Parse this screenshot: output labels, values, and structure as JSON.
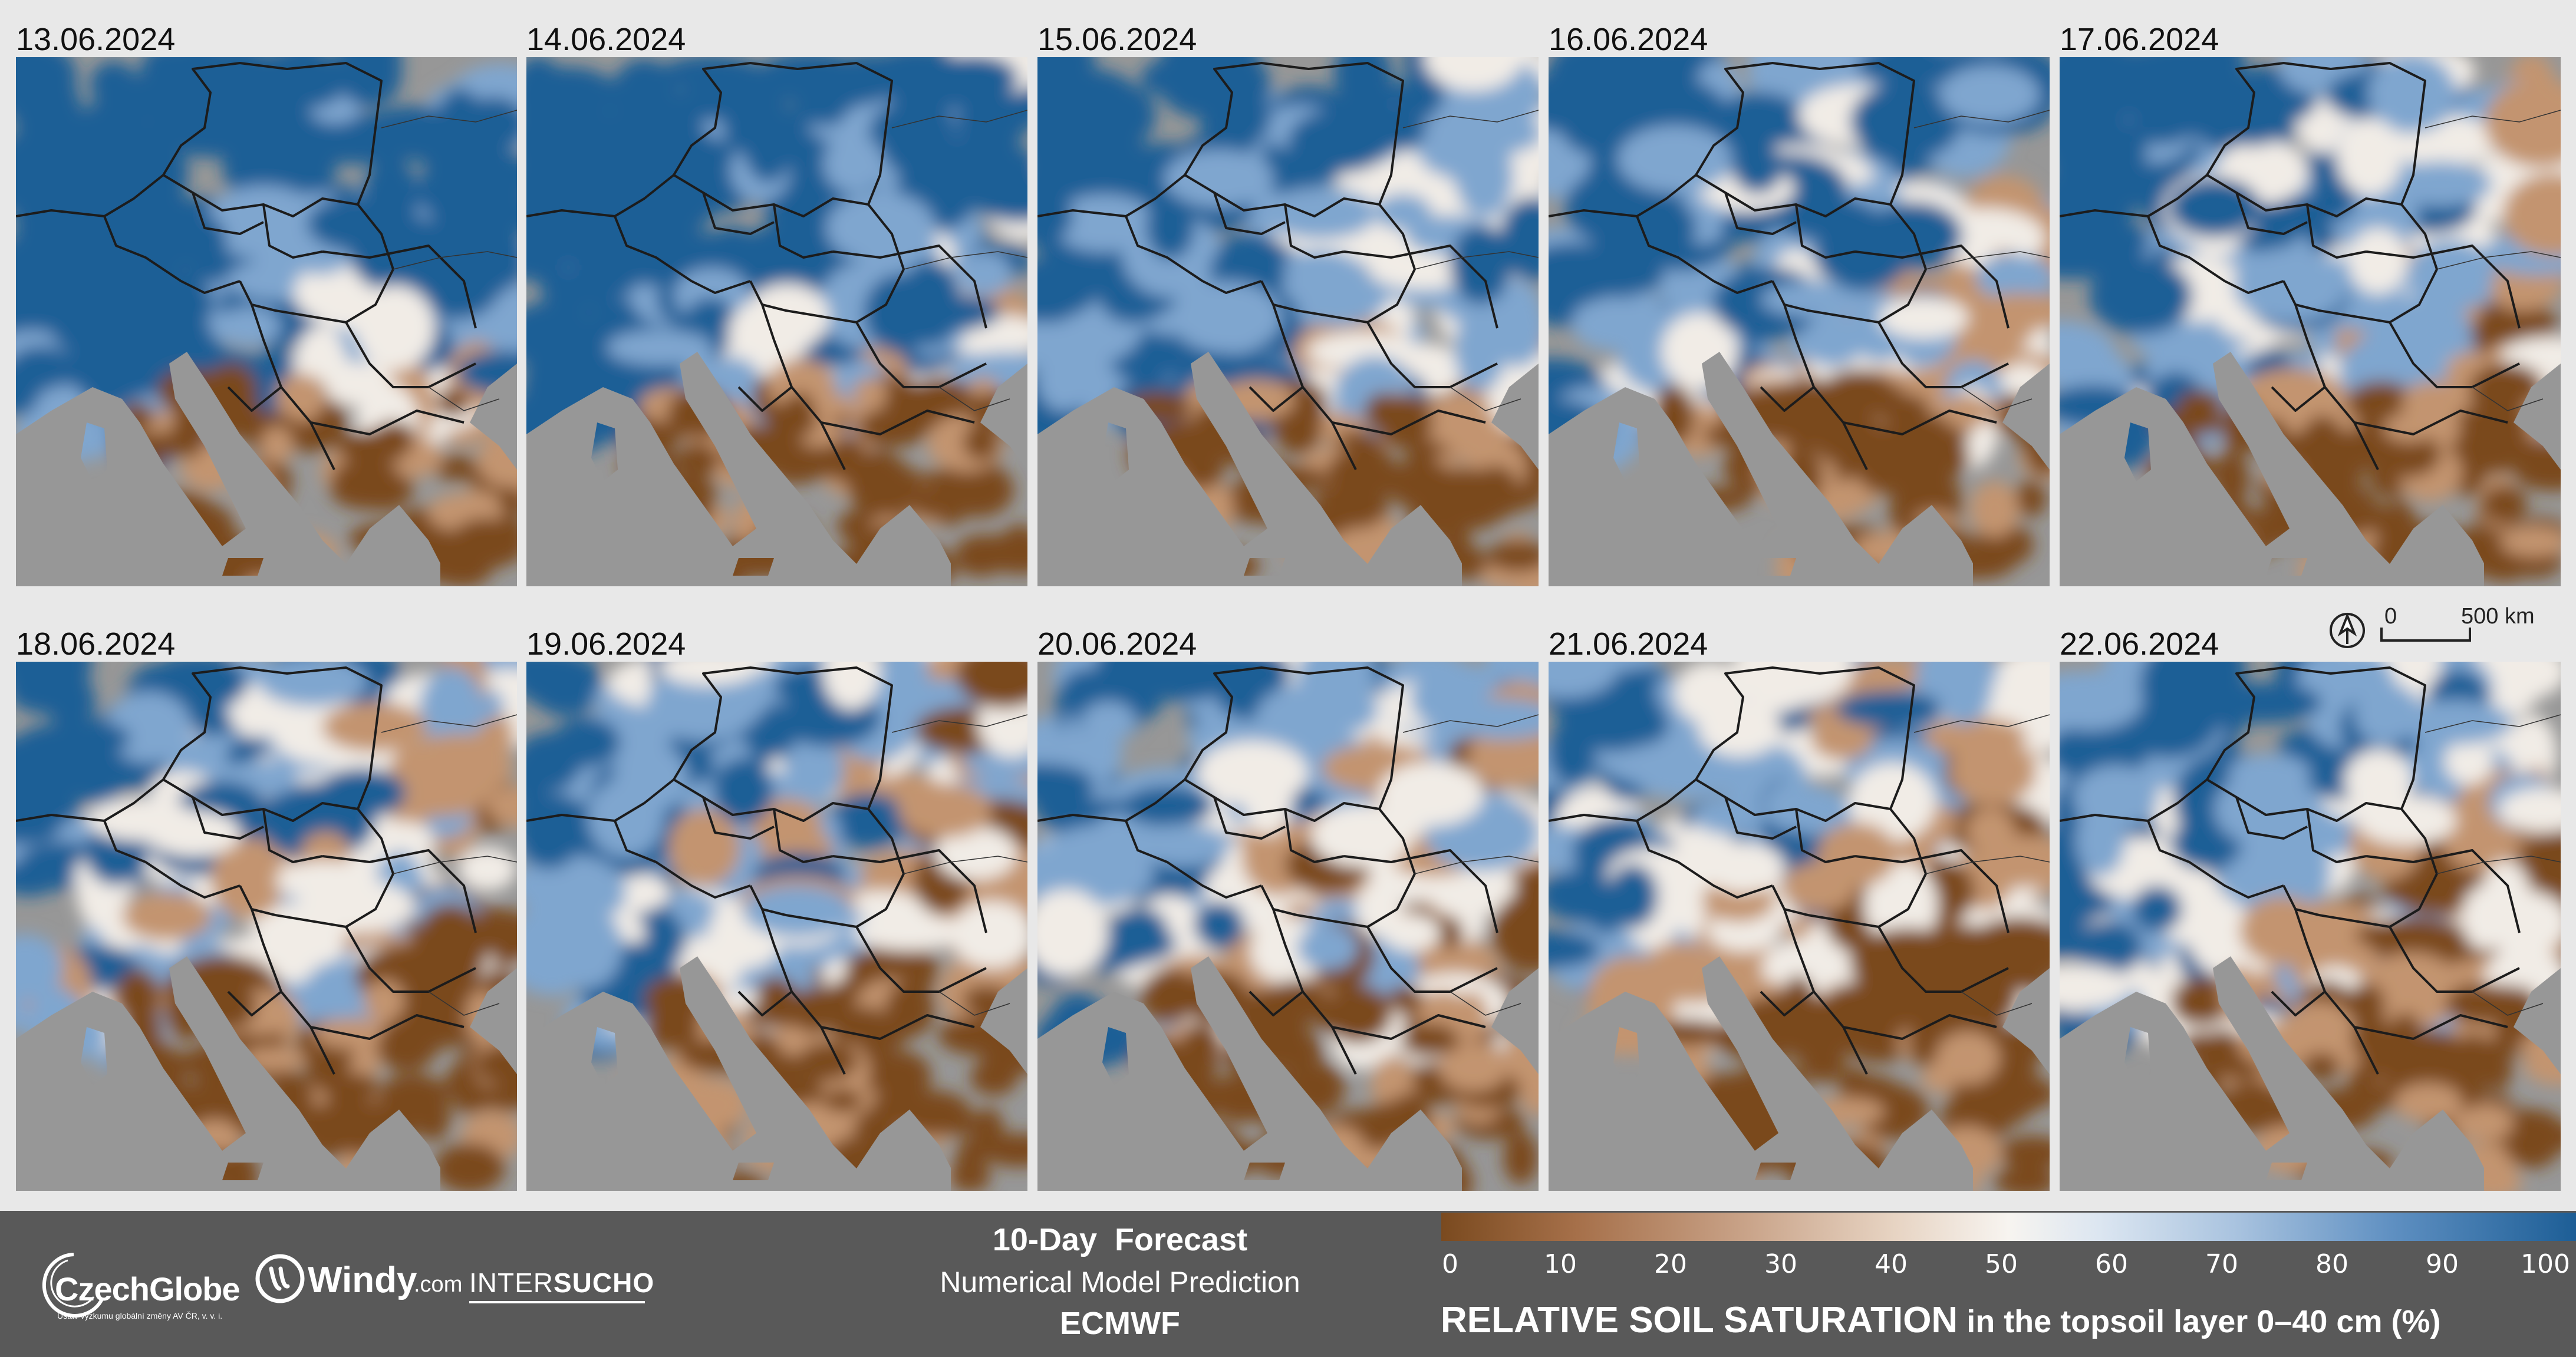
{
  "panels": [
    {
      "date": "13.06.2024",
      "wet": 0.82
    },
    {
      "date": "14.06.2024",
      "wet": 0.8
    },
    {
      "date": "15.06.2024",
      "wet": 0.72
    },
    {
      "date": "16.06.2024",
      "wet": 0.66
    },
    {
      "date": "17.06.2024",
      "wet": 0.64
    },
    {
      "date": "18.06.2024",
      "wet": 0.52
    },
    {
      "date": "19.06.2024",
      "wet": 0.5
    },
    {
      "date": "20.06.2024",
      "wet": 0.48
    },
    {
      "date": "21.06.2024",
      "wet": 0.5
    },
    {
      "date": "22.06.2024",
      "wet": 0.55
    }
  ],
  "scale_bar": {
    "zero": "0",
    "distance": "500 km"
  },
  "footer": {
    "logo1": "CzechGlobe",
    "logo1_sub": "Ústav výzkumu globální změny AV ČR, v. v. i.",
    "logo2_main": "Windy",
    "logo2_suffix": ".com",
    "logo3_a": "INTER",
    "logo3_b": "SUCHO",
    "line1": "10-Day  Forecast",
    "line2": "Numerical Model Prediction",
    "line3": "ECMWF",
    "legend_title_bold": "RELATIVE SOIL SATURATION",
    "legend_title_rest": " in the topsoil layer 0–40 cm (%)",
    "ticks": [
      "0",
      "10",
      "20",
      "30",
      "40",
      "50",
      "60",
      "70",
      "80",
      "90",
      "100"
    ]
  },
  "colors": {
    "dry": "#7a4a1f",
    "mid_dry": "#c39470",
    "neutral": "#f1ece6",
    "mid_wet": "#7fa6cf",
    "wet": "#1d5e96",
    "sea": "#979797",
    "footer_bg": "#595959"
  }
}
